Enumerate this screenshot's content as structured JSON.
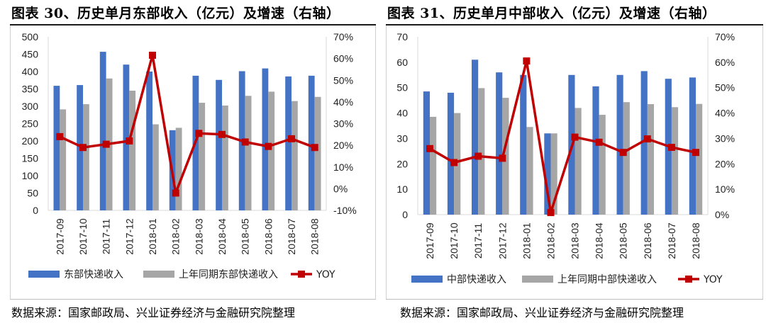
{
  "chart_data": [
    {
      "type": "bar",
      "title": "图表 30、历史单月东部收入（亿元）及增速（右轴）",
      "source": "数据来源：国家邮政局、兴业证券经济与金融研究院整理",
      "categories": [
        "2017-09",
        "2017-10",
        "2017-11",
        "2017-12",
        "2018-01",
        "2018-02",
        "2018-03",
        "2018-04",
        "2018-05",
        "2018-06",
        "2018-07",
        "2018-08"
      ],
      "series": [
        {
          "name": "东部快递收入",
          "kind": "bar",
          "axis": "left",
          "color": "#4472c4",
          "values": [
            359,
            361,
            457,
            420,
            400,
            231,
            388,
            376,
            401,
            409,
            386,
            388
          ]
        },
        {
          "name": "上年同期东部快递收入",
          "kind": "bar",
          "axis": "left",
          "color": "#a6a6a6",
          "values": [
            291,
            306,
            380,
            345,
            248,
            238,
            310,
            302,
            330,
            342,
            315,
            327
          ]
        },
        {
          "name": "YOY",
          "kind": "line",
          "axis": "right",
          "color": "#c00000",
          "values": [
            24,
            19,
            20.5,
            22,
            61.5,
            -2,
            25.5,
            25,
            21.5,
            19.5,
            23,
            19
          ]
        }
      ],
      "yleft": {
        "min": 0,
        "max": 500,
        "step": 50,
        "ticks": [
          "0",
          "50",
          "100",
          "150",
          "200",
          "250",
          "300",
          "350",
          "400",
          "450",
          "500"
        ]
      },
      "yright": {
        "min": -10,
        "max": 70,
        "step": 10,
        "ticks": [
          "-10%",
          "0%",
          "10%",
          "20%",
          "30%",
          "40%",
          "50%",
          "60%",
          "70%"
        ]
      },
      "legend_position": "bottom"
    },
    {
      "type": "bar",
      "title": "图表 31、历史单月中部收入（亿元）及增速（右轴）",
      "source": "数据来源：国家邮政局、兴业证券经济与金融研究院整理",
      "categories": [
        "2017-09",
        "2017-10",
        "2017-11",
        "2017-12",
        "2018-01",
        "2018-02",
        "2018-03",
        "2018-04",
        "2018-05",
        "2018-06",
        "2018-07",
        "2018-08"
      ],
      "series": [
        {
          "name": "中部快递收入",
          "kind": "bar",
          "axis": "left",
          "color": "#4472c4",
          "values": [
            48.5,
            48,
            61,
            56,
            55,
            32,
            55,
            50.5,
            55,
            56.5,
            53.5,
            54
          ]
        },
        {
          "name": "上年同期中部快递收入",
          "kind": "bar",
          "axis": "left",
          "color": "#a6a6a6",
          "values": [
            38.5,
            40,
            49.8,
            46,
            34.5,
            32,
            42,
            39.3,
            44.3,
            43.5,
            42.3,
            43.6
          ]
        },
        {
          "name": "YOY",
          "kind": "line",
          "axis": "right",
          "color": "#c00000",
          "values": [
            26,
            20.5,
            23,
            22.2,
            60.5,
            0.8,
            30.5,
            28.5,
            24.5,
            29.8,
            26.5,
            24.5
          ]
        }
      ],
      "yleft": {
        "min": 0,
        "max": 70,
        "step": 10,
        "ticks": [
          "0",
          "10",
          "20",
          "30",
          "40",
          "50",
          "60",
          "70"
        ]
      },
      "yright": {
        "min": 0,
        "max": 70,
        "step": 10,
        "ticks": [
          "0%",
          "10%",
          "20%",
          "30%",
          "40%",
          "50%",
          "60%",
          "70%"
        ]
      },
      "legend_position": "bottom"
    }
  ]
}
